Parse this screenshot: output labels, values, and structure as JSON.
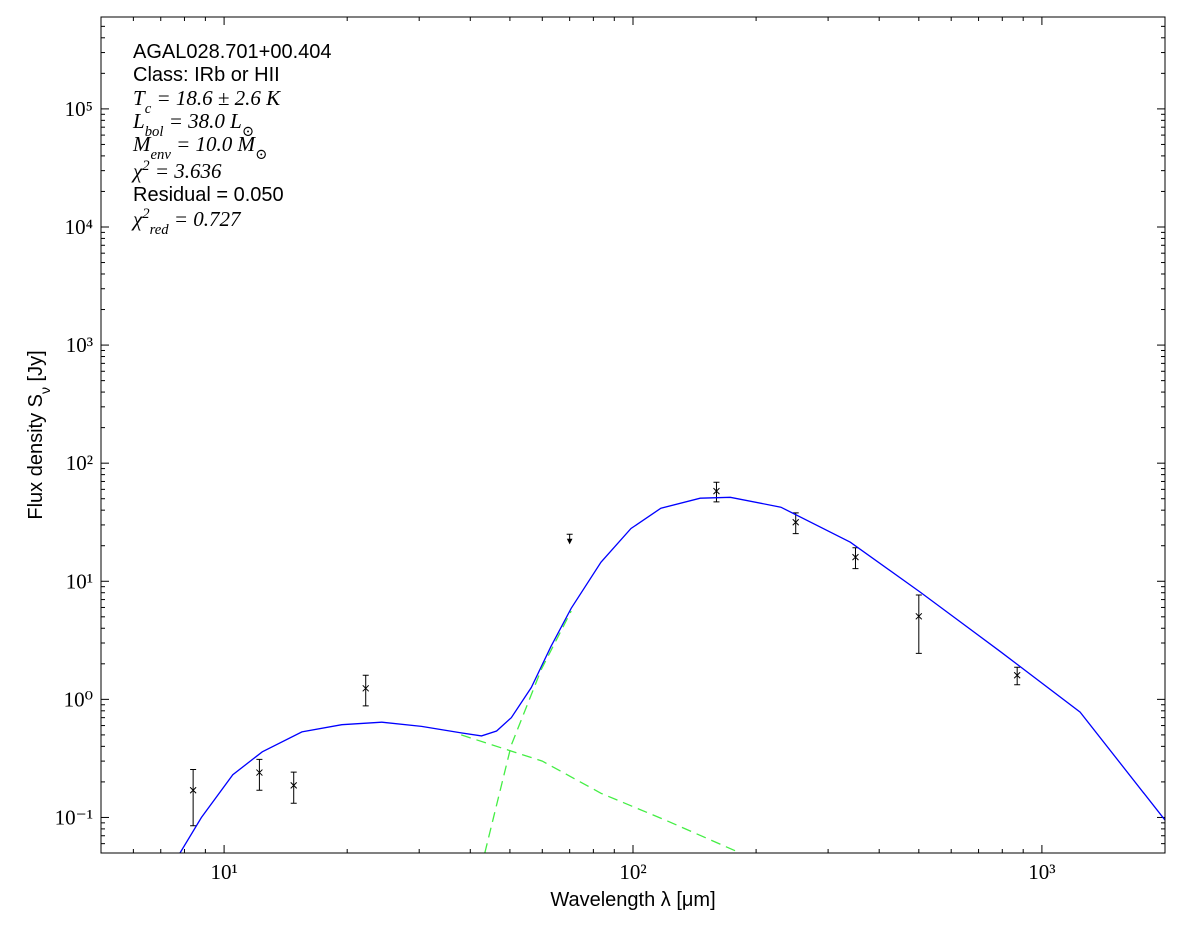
{
  "chart_data": {
    "type": "scatter",
    "annotations": [
      "AGAL028.701+00.404",
      "Class: IRb or HII",
      "T_{c} = 18.6 ± 2.6 K",
      "L_{bol} = 38.0 L_{⊙}",
      "M_{env} = 10.0 M_{⊙}",
      "χ^{2} = 3.636",
      "Residual = 0.050",
      "χ^{2}_{red} = 0.727"
    ],
    "xlabel": "Wavelength λ [μm]",
    "ylabel": "Flux density S_{ν} [Jy]",
    "log_x": true,
    "log_y": true,
    "minor_ticks": true,
    "xlim": [
      5,
      2000
    ],
    "ylim": [
      0.05,
      600000
    ],
    "xticks": [
      {
        "value": 10,
        "label": "10¹"
      },
      {
        "value": 100,
        "label": "10²"
      },
      {
        "value": 1000,
        "label": "10³"
      }
    ],
    "yticks": [
      {
        "value": 0.1,
        "label": "10⁻¹"
      },
      {
        "value": 1,
        "label": "10⁰"
      },
      {
        "value": 10,
        "label": "10¹"
      },
      {
        "value": 100,
        "label": "10²"
      },
      {
        "value": 1000,
        "label": "10³"
      },
      {
        "value": 10000,
        "label": "10⁴"
      },
      {
        "value": 100000,
        "label": "10⁵"
      }
    ],
    "series": [
      {
        "marker": "x",
        "color": "#000000",
        "x": [
          8.4,
          12.2,
          14.8,
          22.2,
          160,
          250,
          350,
          500,
          870
        ],
        "values": [
          0.17,
          0.24,
          0.187,
          1.24,
          58,
          31.6,
          16,
          5.05,
          1.6
        ],
        "errors": [
          0.085,
          0.07,
          0.055,
          0.36,
          11,
          6.3,
          3.2,
          2.6,
          0.27
        ]
      },
      {
        "marker": "upper-limit",
        "color": "#000000",
        "x": [
          70
        ],
        "values": [
          25
        ]
      },
      {
        "style": "solid",
        "color": "#0000ff",
        "x": [
          7.8,
          8.8,
          10.5,
          12.4,
          15.5,
          19.4,
          24.3,
          30.4,
          38,
          42.6,
          46.4,
          50.4,
          56.4,
          63,
          70.6,
          83.5,
          98.9,
          117,
          146,
          173,
          230,
          340,
          504,
          790,
          1240,
          2000
        ],
        "values": [
          0.05,
          0.1,
          0.23,
          0.36,
          0.53,
          0.61,
          0.64,
          0.59,
          0.52,
          0.49,
          0.54,
          0.7,
          1.26,
          2.8,
          5.9,
          14.5,
          28,
          41.6,
          50.5,
          51.4,
          42.4,
          21.4,
          8.1,
          2.55,
          0.78,
          0.095
        ]
      },
      {
        "style": "dashed",
        "color": "#44ee44",
        "x": [
          38,
          60,
          83.5,
          120,
          183
        ],
        "values": [
          0.5,
          0.3,
          0.16,
          0.095,
          0.05
        ]
      },
      {
        "style": "dashed",
        "color": "#44ee44",
        "x": [
          43.4,
          50.4,
          59.7,
          70.6
        ],
        "values": [
          0.05,
          0.41,
          1.8,
          5.6
        ]
      }
    ]
  }
}
